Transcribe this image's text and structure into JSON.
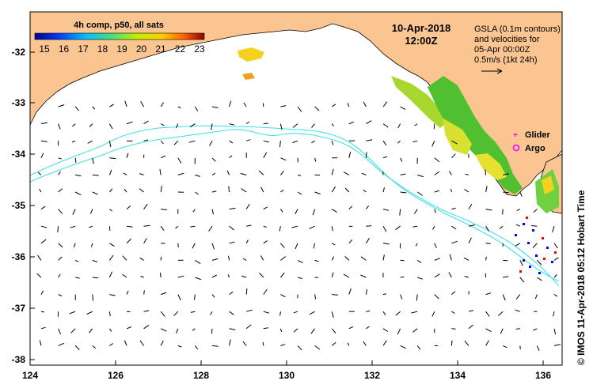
{
  "map": {
    "date": "10-Apr-2018",
    "time": "12:00Z",
    "legend_lines": [
      "GSLA (0.1m contours)",
      "and velocities for",
      "05-Apr 00:00Z",
      "0.5m/s (1kt 24h)"
    ],
    "colorbar": {
      "title": "4h comp, p50, all sats",
      "ticks": [
        "15",
        "16",
        "17",
        "18",
        "19",
        "20",
        "21",
        "22",
        "23"
      ]
    },
    "markers": [
      {
        "label": "Glider",
        "symbol": "+",
        "color": "#ff00ff"
      },
      {
        "label": "Argo",
        "symbol": "o",
        "color": "#ff00ff"
      }
    ],
    "credit": "© IMOS 11-Apr-2018 05:12 Hobart Time",
    "lon_ticks": [
      "124",
      "126",
      "128",
      "130",
      "132",
      "134",
      "136"
    ],
    "lat_ticks": [
      "-32",
      "-33",
      "-34",
      "-35",
      "-36",
      "-37",
      "-38"
    ],
    "colors": {
      "land": "#fac590",
      "sea": "#ffffff",
      "contour": "#40e0e8",
      "arrow": "#000000",
      "marker": "#ff00ff"
    }
  }
}
